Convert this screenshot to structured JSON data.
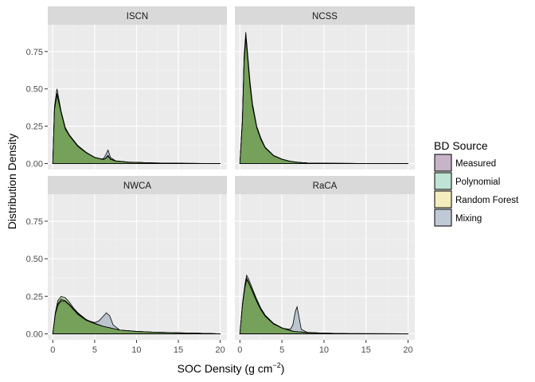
{
  "chart_data": {
    "type": "area",
    "title": "",
    "xlabel": "SOC Density (g cm",
    "xlabel_sup": "−2",
    "xlabel_end": ")",
    "ylabel": "Distribution Density",
    "xlim": [
      -0.6,
      20.8
    ],
    "ylim": [
      -0.04,
      0.93
    ],
    "x_ticks": [
      0,
      5,
      10,
      15,
      20
    ],
    "x_tick_labels": [
      "0",
      "5",
      "10",
      "15",
      "20"
    ],
    "y_ticks": [
      0,
      0.25,
      0.5,
      0.75
    ],
    "y_tick_labels": [
      "0.00",
      "0.25",
      "0.50",
      "0.75"
    ],
    "grid": true,
    "legend": {
      "title": "BD Source",
      "placement": "right",
      "entries": [
        {
          "name": "Measured",
          "color": "#9e7a9e"
        },
        {
          "name": "Polynomial",
          "color": "#7fc4a9"
        },
        {
          "name": "Random Forest",
          "color": "#e8dc7a"
        },
        {
          "name": "Mixing",
          "color": "#7e96ad"
        }
      ]
    },
    "panel_colors": {
      "panel_bg": "#ebebeb",
      "grid_major": "#ffffff",
      "grid_minor": "#f3f3f3",
      "strip_bg": "#d9d9d9",
      "visible_fill": "#6d9d4f"
    },
    "panels": [
      {
        "name": "ISCN",
        "series": [
          {
            "name": "Measured",
            "x": [
              0,
              0.2,
              0.5,
              1,
              1.5,
              2,
              3,
              4,
              5,
              6,
              6.3,
              6.6,
              6.9,
              7.5,
              9,
              12,
              16,
              20
            ],
            "y": [
              0,
              0.38,
              0.5,
              0.35,
              0.24,
              0.19,
              0.12,
              0.075,
              0.042,
              0.028,
              0.035,
              0.055,
              0.03,
              0.018,
              0.01,
              0.004,
              0.001,
              0
            ]
          },
          {
            "name": "Polynomial",
            "x": [
              0,
              0.2,
              0.5,
              1,
              1.5,
              2,
              3,
              4,
              5,
              6,
              6.3,
              6.6,
              6.9,
              7.5,
              9,
              12,
              16,
              20
            ],
            "y": [
              0,
              0.36,
              0.46,
              0.34,
              0.23,
              0.185,
              0.115,
              0.072,
              0.04,
              0.027,
              0.033,
              0.05,
              0.028,
              0.017,
              0.009,
              0.004,
              0.001,
              0
            ]
          },
          {
            "name": "Random Forest",
            "x": [
              0,
              0.2,
              0.5,
              1,
              1.5,
              2,
              3,
              4,
              5,
              6,
              6.3,
              6.6,
              6.9,
              7.5,
              9,
              12,
              16,
              20
            ],
            "y": [
              0,
              0.37,
              0.47,
              0.34,
              0.235,
              0.19,
              0.118,
              0.073,
              0.041,
              0.027,
              0.034,
              0.052,
              0.029,
              0.017,
              0.009,
              0.004,
              0.001,
              0
            ]
          },
          {
            "name": "Mixing",
            "x": [
              0,
              0.2,
              0.5,
              1,
              1.5,
              2,
              3,
              4,
              5,
              6,
              6.3,
              6.6,
              6.9,
              7.5,
              9,
              12,
              16,
              20
            ],
            "y": [
              0,
              0.36,
              0.46,
              0.33,
              0.225,
              0.18,
              0.11,
              0.07,
              0.04,
              0.03,
              0.055,
              0.09,
              0.04,
              0.018,
              0.01,
              0.004,
              0.001,
              0
            ]
          }
        ]
      },
      {
        "name": "NCSS",
        "series": [
          {
            "name": "Measured",
            "x": [
              0,
              0.3,
              0.5,
              0.7,
              0.9,
              1.2,
              1.5,
              2,
              2.5,
              3,
              4,
              5,
              6,
              7,
              8,
              10,
              14,
              20
            ],
            "y": [
              0,
              0.3,
              0.72,
              0.88,
              0.75,
              0.55,
              0.4,
              0.25,
              0.17,
              0.11,
              0.055,
              0.03,
              0.015,
              0.008,
              0.004,
              0.002,
              0.0005,
              0
            ]
          },
          {
            "name": "Polynomial",
            "x": [
              0,
              0.3,
              0.5,
              0.7,
              0.9,
              1.2,
              1.5,
              2,
              2.5,
              3,
              4,
              5,
              6,
              7,
              8,
              10,
              14,
              20
            ],
            "y": [
              0,
              0.28,
              0.68,
              0.84,
              0.72,
              0.52,
              0.38,
              0.24,
              0.16,
              0.105,
              0.052,
              0.028,
              0.014,
              0.007,
              0.004,
              0.002,
              0.0005,
              0
            ]
          },
          {
            "name": "Random Forest",
            "x": [
              0,
              0.3,
              0.5,
              0.7,
              0.9,
              1.2,
              1.5,
              2,
              2.5,
              3,
              4,
              5,
              6,
              7,
              8,
              10,
              14,
              20
            ],
            "y": [
              0,
              0.29,
              0.7,
              0.86,
              0.73,
              0.53,
              0.39,
              0.245,
              0.165,
              0.108,
              0.053,
              0.029,
              0.014,
              0.007,
              0.004,
              0.002,
              0.0005,
              0
            ]
          },
          {
            "name": "Mixing",
            "x": [
              0,
              0.3,
              0.5,
              0.7,
              0.9,
              1.2,
              1.5,
              2,
              2.5,
              3,
              4,
              5,
              6,
              7,
              8,
              10,
              14,
              20
            ],
            "y": [
              0,
              0.28,
              0.69,
              0.85,
              0.72,
              0.52,
              0.38,
              0.24,
              0.16,
              0.105,
              0.052,
              0.028,
              0.014,
              0.007,
              0.004,
              0.002,
              0.0005,
              0
            ]
          }
        ]
      },
      {
        "name": "NWCA",
        "series": [
          {
            "name": "Measured",
            "x": [
              0,
              0.3,
              0.6,
              1,
              1.5,
              2,
              2.5,
              3,
              4,
              5,
              5.5,
              6,
              6.4,
              6.8,
              7.2,
              8,
              10,
              12,
              15,
              18,
              20
            ],
            "y": [
              0,
              0.14,
              0.22,
              0.25,
              0.24,
              0.21,
              0.17,
              0.14,
              0.095,
              0.07,
              0.06,
              0.05,
              0.045,
              0.04,
              0.035,
              0.025,
              0.015,
              0.01,
              0.006,
              0.003,
              0
            ]
          },
          {
            "name": "Polynomial",
            "x": [
              0,
              0.3,
              0.6,
              1,
              1.5,
              2,
              2.5,
              3,
              4,
              5,
              5.5,
              6,
              6.4,
              6.8,
              7.2,
              8,
              10,
              12,
              15,
              18,
              20
            ],
            "y": [
              0,
              0.13,
              0.19,
              0.22,
              0.215,
              0.19,
              0.16,
              0.13,
              0.09,
              0.068,
              0.058,
              0.05,
              0.045,
              0.04,
              0.035,
              0.025,
              0.016,
              0.011,
              0.007,
              0.003,
              0
            ]
          },
          {
            "name": "Random Forest",
            "x": [
              0,
              0.3,
              0.6,
              1,
              1.5,
              2,
              2.5,
              3,
              4,
              5,
              5.5,
              6,
              6.4,
              6.8,
              7.2,
              8,
              10,
              12,
              15,
              18,
              20
            ],
            "y": [
              0,
              0.13,
              0.2,
              0.23,
              0.22,
              0.195,
              0.165,
              0.135,
              0.092,
              0.07,
              0.06,
              0.05,
              0.045,
              0.04,
              0.035,
              0.025,
              0.016,
              0.011,
              0.007,
              0.003,
              0
            ]
          },
          {
            "name": "Mixing",
            "x": [
              0,
              0.3,
              0.6,
              1,
              1.5,
              2,
              2.5,
              3,
              4,
              5,
              5.5,
              6,
              6.4,
              6.8,
              7.2,
              8,
              10,
              12,
              15,
              18,
              20
            ],
            "y": [
              0,
              0.12,
              0.18,
              0.21,
              0.2,
              0.18,
              0.15,
              0.125,
              0.09,
              0.075,
              0.085,
              0.115,
              0.14,
              0.12,
              0.06,
              0.025,
              0.015,
              0.01,
              0.006,
              0.003,
              0
            ]
          }
        ]
      },
      {
        "name": "RaCA",
        "series": [
          {
            "name": "Measured",
            "x": [
              0,
              0.3,
              0.6,
              0.8,
              1,
              1.5,
              2,
              2.5,
              3,
              4,
              5,
              6,
              6.3,
              6.6,
              6.8,
              7,
              7.3,
              8,
              10,
              13,
              20
            ],
            "y": [
              0,
              0.2,
              0.33,
              0.39,
              0.37,
              0.3,
              0.23,
              0.17,
              0.125,
              0.07,
              0.04,
              0.022,
              0.018,
              0.015,
              0.014,
              0.013,
              0.012,
              0.008,
              0.004,
              0.001,
              0
            ]
          },
          {
            "name": "Polynomial",
            "x": [
              0,
              0.3,
              0.6,
              0.8,
              1,
              1.5,
              2,
              2.5,
              3,
              4,
              5,
              6,
              6.3,
              6.6,
              6.8,
              7,
              7.3,
              8,
              10,
              13,
              20
            ],
            "y": [
              0,
              0.19,
              0.31,
              0.36,
              0.345,
              0.28,
              0.215,
              0.16,
              0.118,
              0.066,
              0.038,
              0.021,
              0.017,
              0.015,
              0.014,
              0.013,
              0.012,
              0.008,
              0.004,
              0.001,
              0
            ]
          },
          {
            "name": "Random Forest",
            "x": [
              0,
              0.3,
              0.6,
              0.8,
              1,
              1.5,
              2,
              2.5,
              3,
              4,
              5,
              6,
              6.3,
              6.6,
              6.8,
              7,
              7.3,
              8,
              10,
              13,
              20
            ],
            "y": [
              0,
              0.19,
              0.32,
              0.37,
              0.35,
              0.285,
              0.22,
              0.163,
              0.12,
              0.068,
              0.039,
              0.021,
              0.017,
              0.015,
              0.014,
              0.013,
              0.012,
              0.008,
              0.004,
              0.001,
              0
            ]
          },
          {
            "name": "Mixing",
            "x": [
              0,
              0.3,
              0.6,
              0.8,
              1,
              1.5,
              2,
              2.5,
              3,
              4,
              5,
              6,
              6.3,
              6.6,
              6.8,
              7,
              7.3,
              8,
              10,
              13,
              20
            ],
            "y": [
              0,
              0.18,
              0.3,
              0.35,
              0.335,
              0.275,
              0.21,
              0.155,
              0.113,
              0.064,
              0.037,
              0.03,
              0.06,
              0.15,
              0.18,
              0.12,
              0.03,
              0.01,
              0.004,
              0.001,
              0
            ]
          }
        ]
      }
    ]
  }
}
